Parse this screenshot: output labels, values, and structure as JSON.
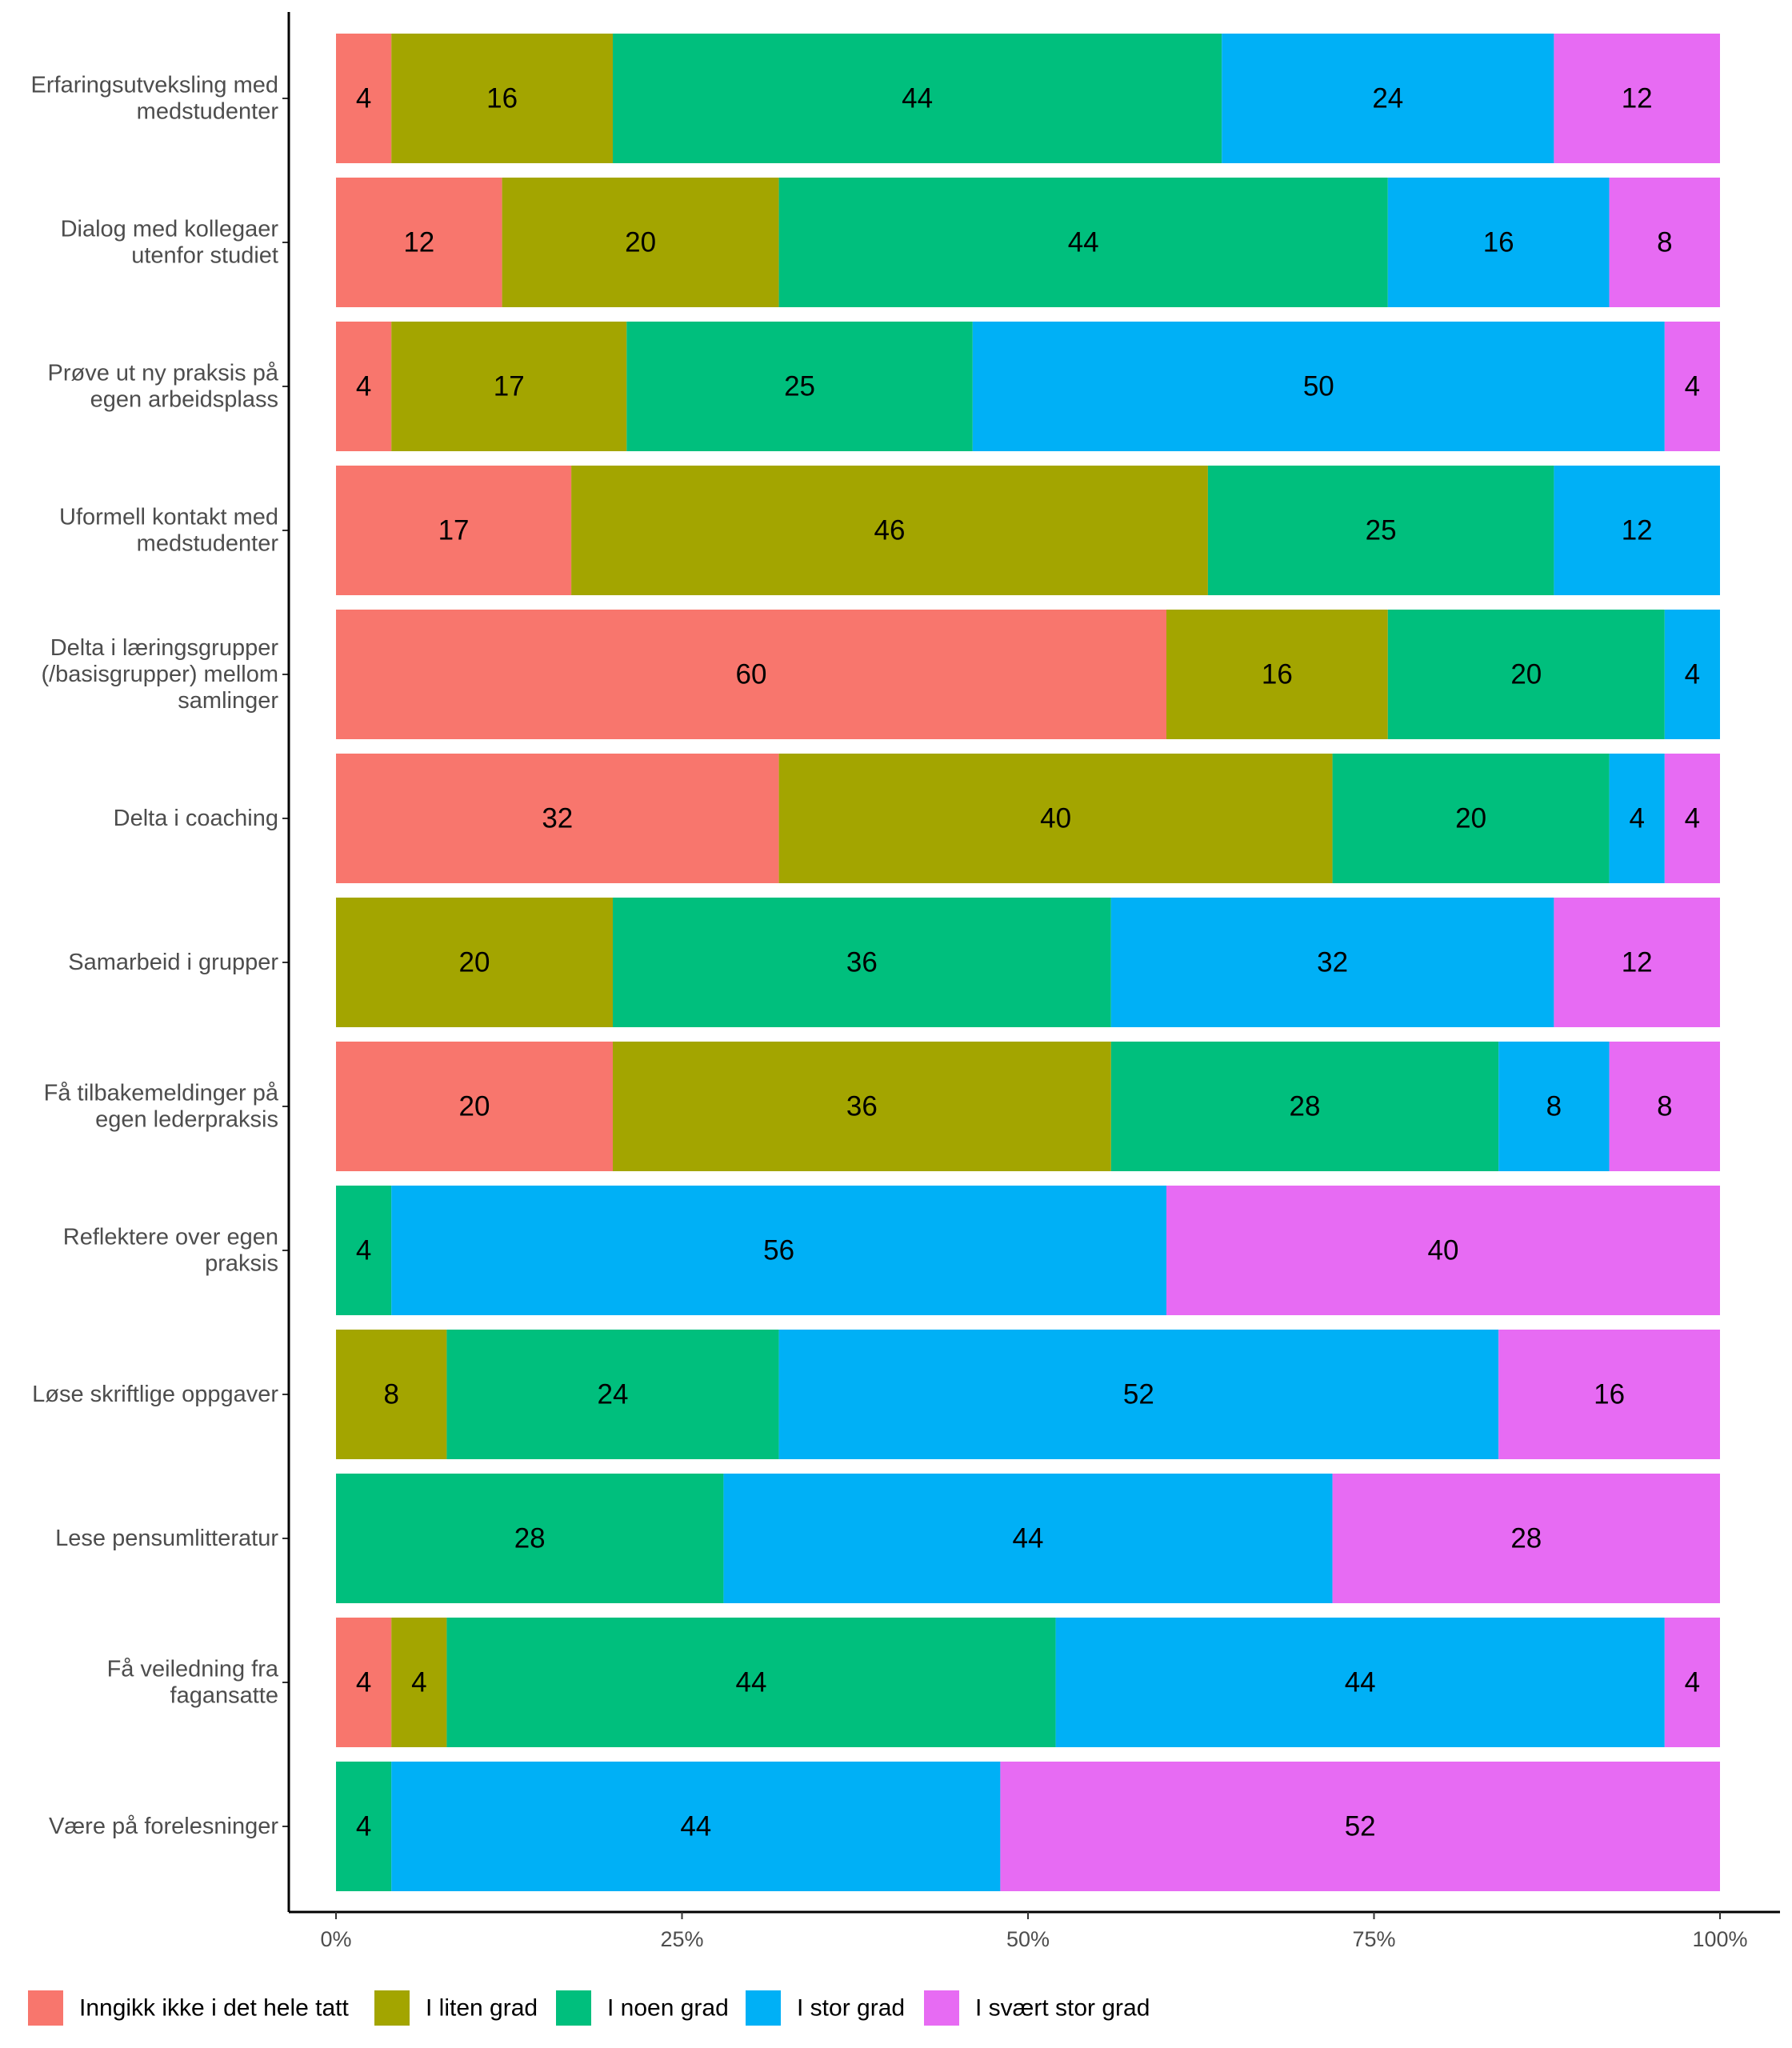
{
  "chart_data": {
    "type": "bar",
    "orientation": "horizontal",
    "stacked": true,
    "percent_scale": true,
    "categories": [
      "Erfaringsutveksling med\nmedstudenter",
      "Dialog med kollegaer\nutenfor studiet",
      "Prøve ut ny praksis på\negen arbeidsplass",
      "Uformell kontakt med\nmedstudenter",
      "Delta i læringsgrupper\n(/basisgrupper) mellom\nsamlinger",
      "Delta i coaching",
      "Samarbeid i grupper",
      "Få tilbakemeldinger på\negen lederpraksis",
      "Reflektere over egen\npraksis",
      "Løse skriftlige oppgaver",
      "Lese pensumlitteratur",
      "Få veiledning fra\nfagansatte",
      "Være på forelesninger"
    ],
    "series": [
      {
        "name": "Inngikk ikke i det hele tatt",
        "color": "#F8766D",
        "values": [
          4,
          12,
          4,
          17,
          60,
          32,
          0,
          20,
          0,
          0,
          0,
          4,
          0
        ]
      },
      {
        "name": "I liten grad",
        "color": "#A3A500",
        "values": [
          16,
          20,
          17,
          46,
          16,
          40,
          20,
          36,
          0,
          8,
          0,
          4,
          0
        ]
      },
      {
        "name": "I noen grad",
        "color": "#00BF7D",
        "values": [
          44,
          44,
          25,
          25,
          20,
          20,
          36,
          28,
          4,
          24,
          28,
          44,
          4
        ]
      },
      {
        "name": "I stor grad",
        "color": "#00B0F6",
        "values": [
          24,
          16,
          50,
          12,
          4,
          4,
          32,
          8,
          56,
          52,
          44,
          44,
          44
        ]
      },
      {
        "name": "I svært stor grad",
        "color": "#E76BF3",
        "values": [
          12,
          8,
          4,
          0,
          0,
          4,
          12,
          8,
          40,
          16,
          28,
          4,
          52
        ]
      }
    ],
    "xlim": [
      0,
      100
    ],
    "x_ticks": [
      "0%",
      "25%",
      "50%",
      "75%",
      "100%"
    ],
    "xlabel": "",
    "ylabel": "",
    "grid": false,
    "legend_position": "bottom"
  }
}
